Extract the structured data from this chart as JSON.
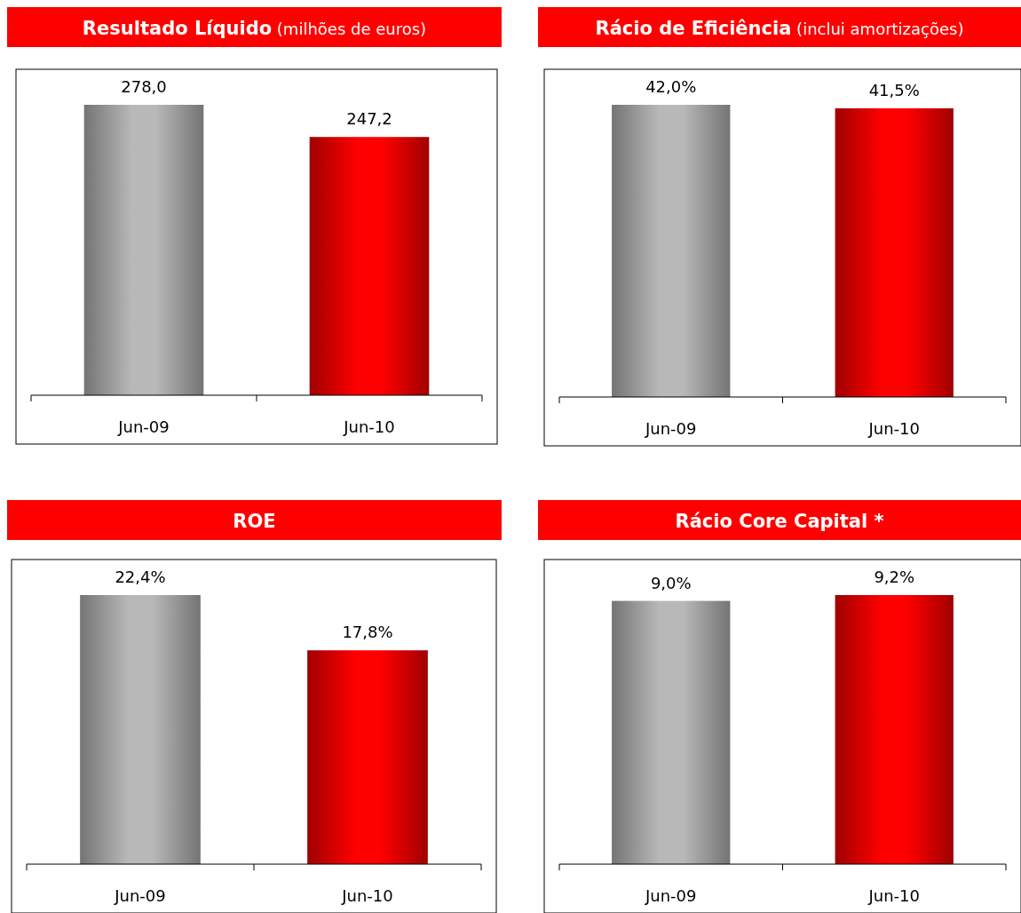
{
  "chart_data": [
    {
      "type": "bar",
      "title": "Resultado Líquido",
      "subtitle": "(milhões de euros)",
      "categories": [
        "Jun-09",
        "Jun-10"
      ],
      "values": [
        278.0,
        247.2
      ],
      "value_labels": [
        "278,0",
        "247,2"
      ],
      "colors": [
        "#b8b8b8",
        "#ff0000"
      ],
      "tick_labels": "x"
    },
    {
      "type": "bar",
      "title": "Rácio de Eficiência",
      "subtitle": "(inclui amortizações)",
      "categories": [
        "Jun-09",
        "Jun-10"
      ],
      "values": [
        42.0,
        41.5
      ],
      "value_labels": [
        "42,0%",
        "41,5%"
      ],
      "colors": [
        "#b8b8b8",
        "#ff0000"
      ],
      "tick_labels": "x"
    },
    {
      "type": "bar",
      "title": "ROE",
      "categories": [
        "Jun-09",
        "Jun-10"
      ],
      "values": [
        22.4,
        17.8
      ],
      "value_labels": [
        "22,4%",
        "17,8%"
      ],
      "colors": [
        "#b8b8b8",
        "#ff0000"
      ],
      "tick_labels": "x"
    },
    {
      "type": "bar",
      "title": "Rácio Core Capital *",
      "categories": [
        "Jun-09",
        "Jun-10"
      ],
      "values": [
        9.0,
        9.2
      ],
      "value_labels": [
        "9,0%",
        "9,2%"
      ],
      "colors": [
        "#b8b8b8",
        "#ff0000"
      ],
      "tick_labels": "x"
    }
  ]
}
